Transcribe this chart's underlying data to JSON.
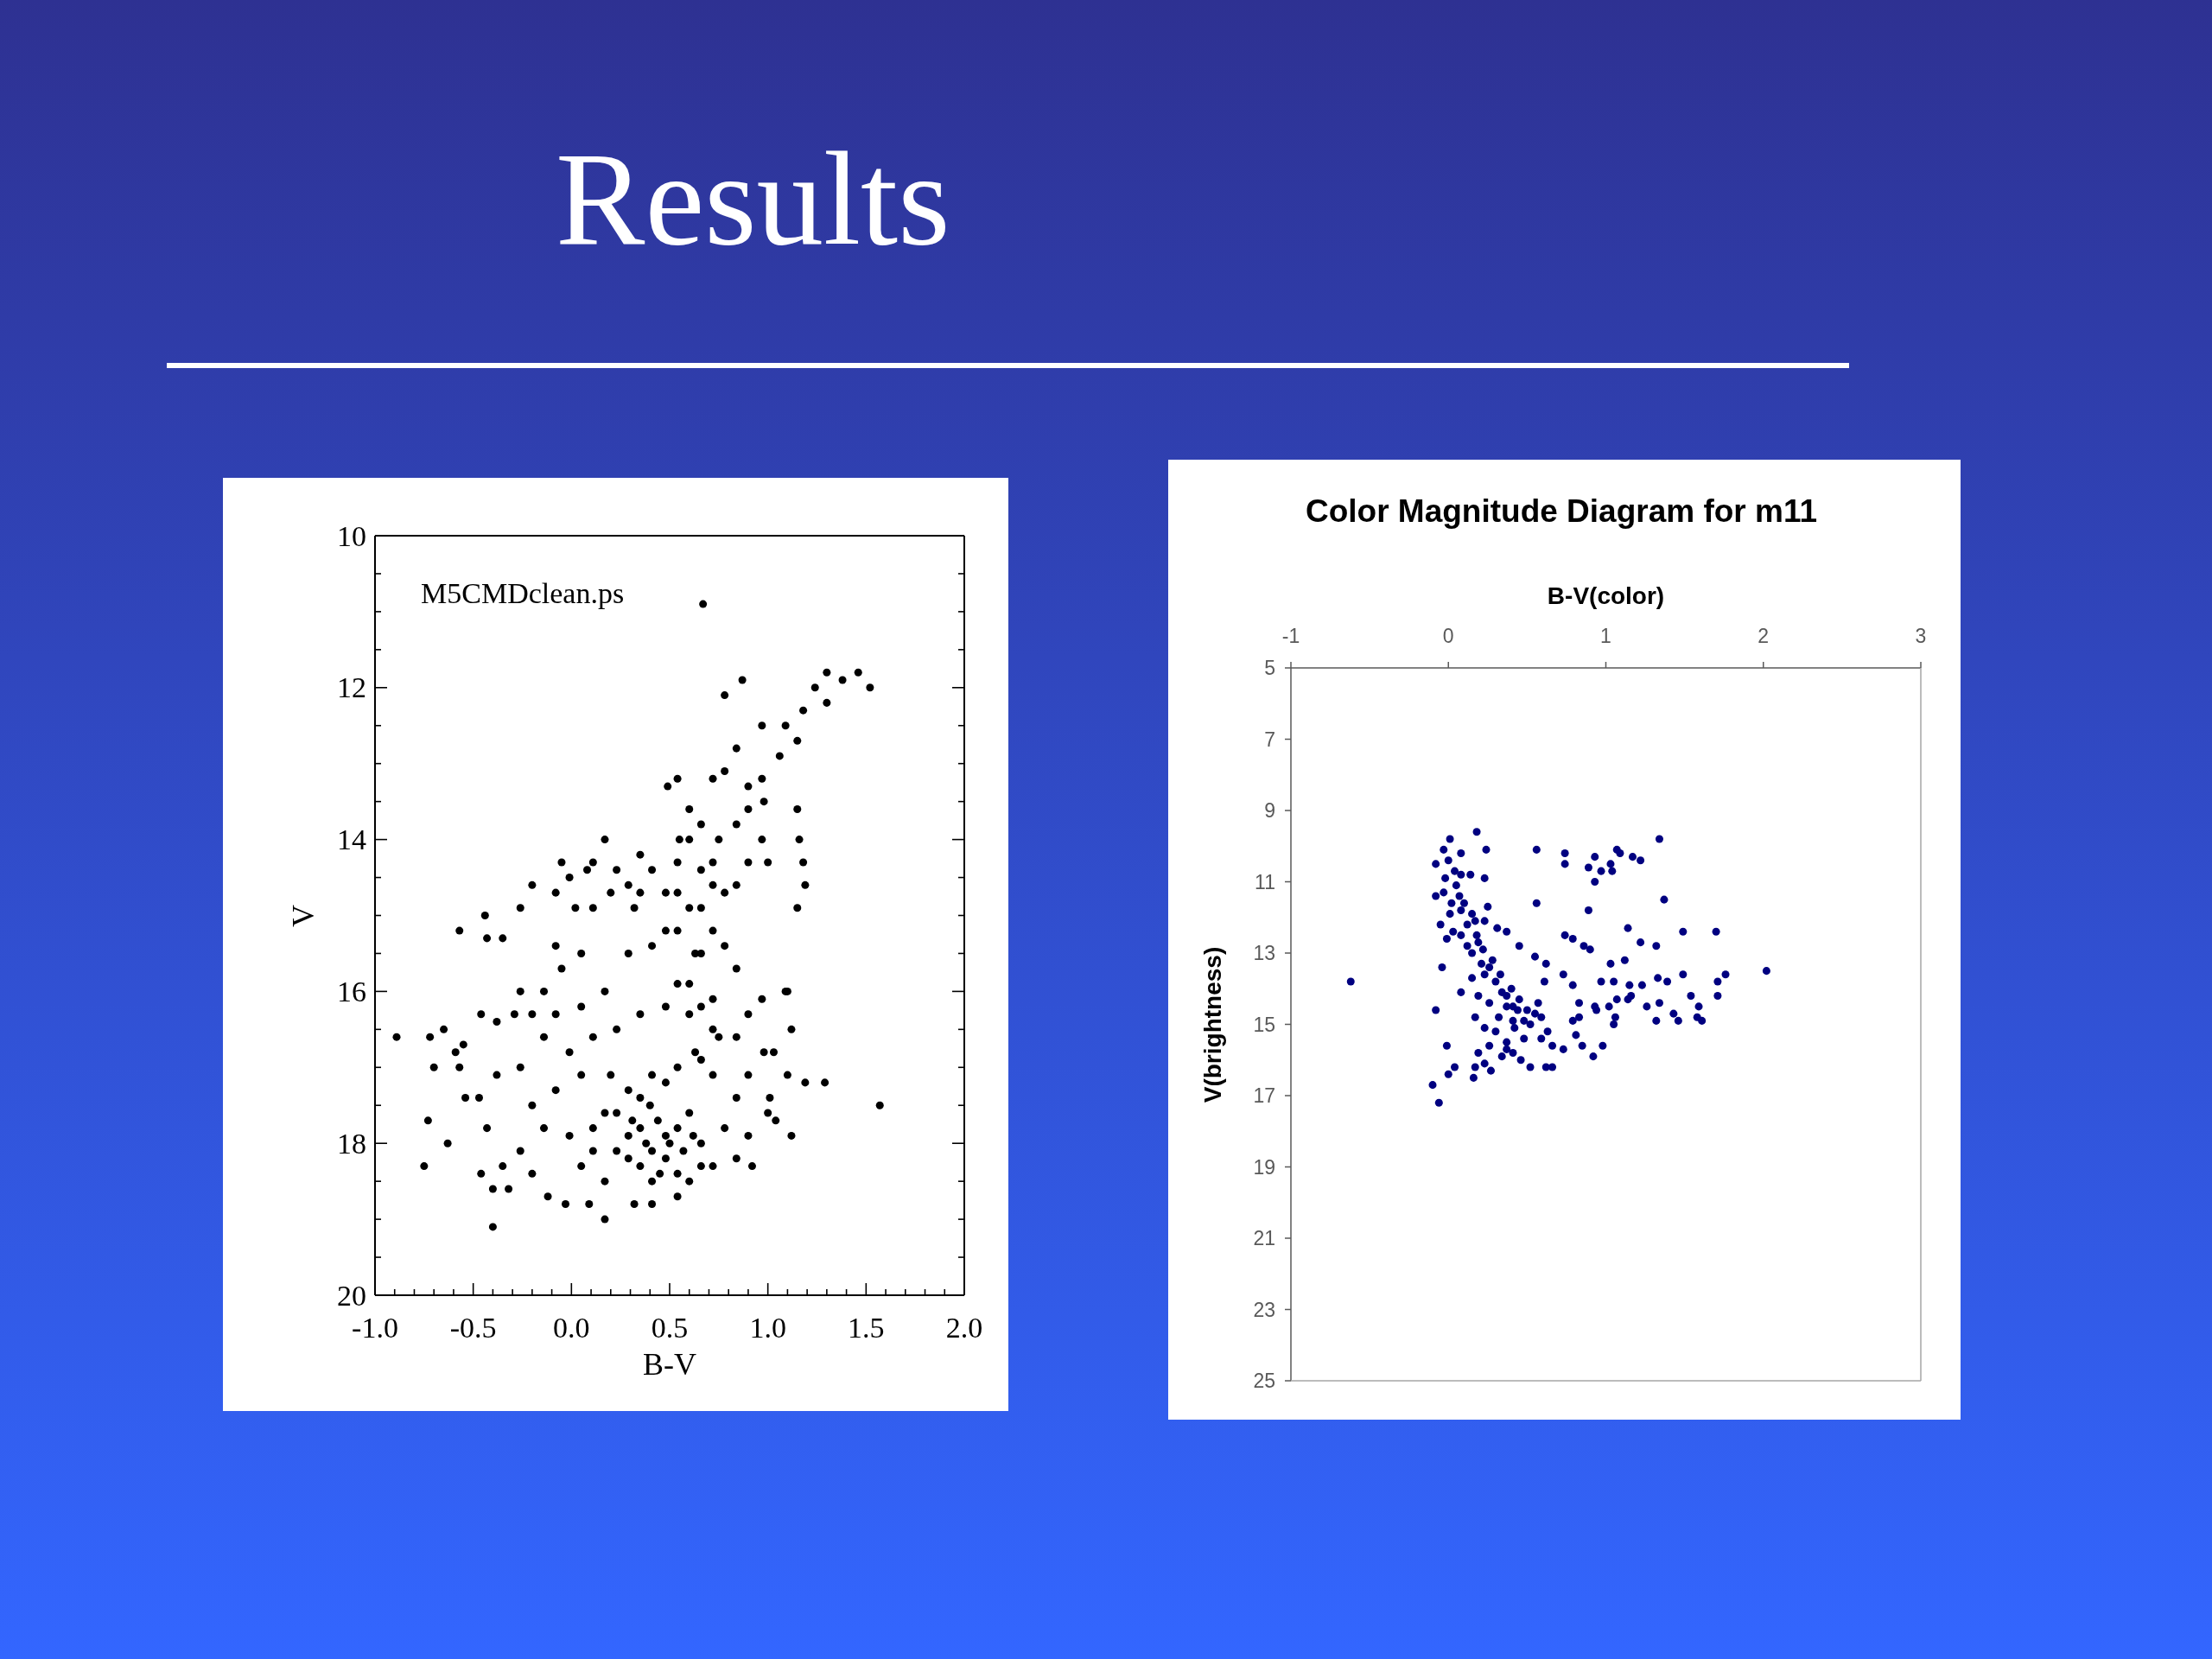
{
  "chart_data": [
    {
      "type": "other",
      "title": "Results"
    },
    {
      "type": "scatter",
      "xlabel": "B-V",
      "ylabel": "V",
      "annotations": [
        "M5CMDclean.ps"
      ],
      "marker": "circle",
      "color": "#000000",
      "xlim": [
        -1,
        2
      ],
      "ylim": [
        20,
        10
      ],
      "xticks": [
        {
          "value": -1,
          "label": "-1.0"
        },
        {
          "value": -0.9,
          "label": null
        },
        {
          "value": -0.8,
          "label": null
        },
        {
          "value": -0.7,
          "label": null
        },
        {
          "value": -0.6,
          "label": null
        },
        {
          "value": -0.5,
          "label": "-0.5"
        },
        {
          "value": -0.4,
          "label": null
        },
        {
          "value": -0.3,
          "label": null
        },
        {
          "value": -0.2,
          "label": null
        },
        {
          "value": -0.1,
          "label": null
        },
        {
          "value": 0,
          "label": "0.0"
        },
        {
          "value": 0.1,
          "label": null
        },
        {
          "value": 0.2,
          "label": null
        },
        {
          "value": 0.3,
          "label": null
        },
        {
          "value": 0.4,
          "label": null
        },
        {
          "value": 0.5,
          "label": "0.5"
        },
        {
          "value": 0.6,
          "label": null
        },
        {
          "value": 0.7,
          "label": null
        },
        {
          "value": 0.8,
          "label": null
        },
        {
          "value": 0.9,
          "label": null
        },
        {
          "value": 1,
          "label": "1.0"
        },
        {
          "value": 1.1,
          "label": null
        },
        {
          "value": 1.2,
          "label": null
        },
        {
          "value": 1.3,
          "label": null
        },
        {
          "value": 1.4,
          "label": null
        },
        {
          "value": 1.5,
          "label": "1.5"
        },
        {
          "value": 1.6,
          "label": null
        },
        {
          "value": 1.7,
          "label": null
        },
        {
          "value": 1.8,
          "label": null
        },
        {
          "value": 1.9,
          "label": null
        },
        {
          "value": 2,
          "label": "2.0"
        }
      ],
      "yticks": [
        10,
        {
          "value": 10.5,
          "label": null
        },
        {
          "value": 11,
          "label": null
        },
        {
          "value": 11.5,
          "label": null
        },
        12,
        {
          "value": 12.5,
          "label": null
        },
        {
          "value": 13,
          "label": null
        },
        {
          "value": 13.5,
          "label": null
        },
        14,
        {
          "value": 14.5,
          "label": null
        },
        {
          "value": 15,
          "label": null
        },
        {
          "value": 15.5,
          "label": null
        },
        16,
        {
          "value": 16.5,
          "label": null
        },
        {
          "value": 17,
          "label": null
        },
        {
          "value": 17.5,
          "label": null
        },
        18,
        {
          "value": 18.5,
          "label": null
        },
        {
          "value": 19,
          "label": null
        },
        {
          "value": 19.5,
          "label": null
        },
        20
      ],
      "x": [
        0.67,
        1.46,
        1.52,
        1.38,
        1.3,
        1.24,
        1.3,
        1.18,
        1.09,
        0.97,
        0.87,
        0.78,
        1.15,
        1.06,
        0.97,
        0.9,
        0.84,
        0.78,
        0.72,
        0.98,
        0.9,
        0.84,
        0.75,
        0.66,
        0.54,
        0.49,
        0.97,
        1.0,
        0.9,
        1.15,
        1.16,
        1.18,
        1.19,
        1.15,
        -0.2,
        -0.26,
        -0.08,
        -0.01,
        0.08,
        0.17,
        0.11,
        0.23,
        0.32,
        0.29,
        0.41,
        0.48,
        0.35,
        0.54,
        0.6,
        0.66,
        0.72,
        0.78,
        0.84,
        -0.05,
        0.02,
        0.11,
        0.2,
        0.35,
        -0.08,
        -0.05,
        0.05,
        -0.14,
        -0.2,
        -0.26,
        -0.29,
        -0.08,
        0.05,
        0.17,
        0.29,
        0.41,
        0.54,
        0.66,
        0.78,
        0.84,
        0.6,
        0.72,
        0.9,
        0.97,
        1.09,
        1.12,
        1.03,
        0.84,
        0.72,
        0.6,
        0.48,
        0.35,
        0.23,
        0.11,
        -0.01,
        -0.14,
        -0.26,
        -0.89,
        -0.72,
        -0.7,
        -0.65,
        -0.59,
        -0.57,
        -0.57,
        -0.55,
        -0.44,
        -0.43,
        -0.35,
        -0.46,
        -0.38,
        -0.54,
        -0.47,
        -0.43,
        -0.38,
        -0.73,
        -0.63,
        -0.75,
        -0.46,
        -0.4,
        -0.4,
        -0.32,
        -0.35,
        -0.2,
        -0.14,
        -0.26,
        -0.2,
        -0.12,
        -0.03,
        0.09,
        0.17,
        -0.08,
        0.05,
        -0.01,
        0.11,
        0.05,
        0.17,
        0.32,
        0.41,
        0.54,
        0.6,
        0.29,
        0.35,
        0.41,
        0.48,
        0.54,
        0.48,
        0.35,
        0.29,
        0.23,
        0.23,
        0.35,
        0.48,
        0.6,
        0.66,
        0.72,
        0.78,
        0.84,
        0.9,
        0.9,
        0.72,
        0.66,
        0.54,
        0.41,
        0.29,
        0.2,
        0.17,
        0.54,
        0.41,
        0.66,
        0.84,
        0.92,
        0.11,
        1.1,
        1.12,
        1.04,
        1.19,
        1.29,
        1.57,
        1.0,
        1.01,
        0.98,
        1.1,
        0.55,
        0.6,
        0.72,
        0.66,
        0.72,
        0.6,
        0.54,
        0.48,
        0.63,
        0.54,
        0.66,
        0.75,
        0.63,
        0.38,
        0.44,
        0.5,
        0.57,
        0.45,
        0.31,
        0.62,
        0.4
      ],
      "values": [
        10.9,
        11.8,
        12.0,
        11.9,
        11.8,
        12.0,
        12.2,
        12.3,
        12.5,
        12.5,
        11.9,
        12.1,
        12.7,
        12.9,
        13.2,
        13.3,
        12.8,
        13.1,
        13.2,
        13.5,
        13.6,
        13.8,
        14.0,
        13.8,
        13.2,
        13.3,
        14.0,
        14.3,
        14.3,
        13.6,
        14.0,
        14.3,
        14.6,
        14.9,
        14.6,
        14.9,
        14.7,
        14.5,
        14.4,
        14.0,
        14.3,
        14.4,
        14.9,
        14.6,
        14.4,
        14.7,
        14.2,
        14.3,
        14.0,
        14.4,
        14.6,
        14.7,
        14.6,
        14.3,
        14.9,
        14.9,
        14.7,
        14.7,
        15.4,
        15.7,
        15.5,
        16.0,
        16.3,
        16.0,
        16.3,
        16.3,
        16.2,
        16.0,
        15.5,
        15.4,
        15.2,
        15.5,
        15.4,
        15.7,
        15.9,
        16.1,
        16.3,
        16.1,
        16.0,
        16.5,
        16.8,
        16.6,
        16.5,
        16.3,
        16.2,
        16.3,
        16.5,
        16.6,
        16.8,
        16.6,
        17.0,
        16.6,
        16.6,
        17.0,
        16.5,
        16.8,
        17.0,
        15.2,
        16.7,
        15.0,
        15.3,
        15.3,
        16.3,
        16.4,
        17.4,
        17.4,
        17.8,
        17.1,
        17.7,
        18.0,
        18.3,
        18.4,
        18.6,
        19.1,
        18.6,
        18.3,
        17.5,
        17.8,
        18.1,
        18.4,
        18.7,
        18.8,
        18.8,
        19.0,
        17.3,
        17.1,
        17.9,
        17.8,
        18.3,
        18.5,
        18.8,
        18.8,
        18.7,
        18.5,
        17.9,
        17.8,
        18.1,
        17.9,
        17.8,
        18.2,
        18.3,
        18.2,
        18.1,
        17.6,
        17.4,
        17.2,
        17.6,
        18.0,
        18.3,
        17.8,
        17.4,
        17.9,
        17.1,
        17.1,
        16.9,
        17.0,
        17.1,
        17.3,
        17.1,
        17.6,
        18.4,
        18.5,
        18.3,
        18.2,
        18.3,
        18.1,
        17.1,
        17.9,
        17.7,
        17.2,
        17.2,
        17.5,
        17.6,
        17.4,
        16.8,
        16.0,
        14.0,
        13.6,
        14.3,
        14.9,
        15.2,
        14.9,
        14.7,
        15.2,
        15.5,
        15.9,
        16.2,
        16.6,
        16.8,
        18.0,
        17.7,
        18.0,
        18.1,
        18.4,
        17.7,
        17.9,
        17.5
      ]
    },
    {
      "type": "scatter",
      "title": "Color Magnitude Diagram for m11",
      "xlabel": "B-V(color)",
      "ylabel": "V(brightness)",
      "marker": "circle",
      "color": "#000080",
      "xlim": [
        -1,
        3
      ],
      "ylim": [
        25,
        5
      ],
      "xticks": [
        -1,
        0,
        1,
        2,
        3
      ],
      "yticks": [
        5,
        7,
        9,
        11,
        13,
        15,
        17,
        19,
        21,
        23,
        25
      ],
      "x": [
        0.18,
        0.01,
        1.34,
        -0.03,
        0.08,
        0.24,
        0.56,
        0.74,
        0.74,
        0.93,
        0.89,
        0.97,
        0.93,
        1.03,
        1.07,
        1.09,
        1.17,
        1.22,
        1.04,
        -0.08,
        0,
        0.04,
        -0.02,
        0.08,
        0.14,
        0.23,
        -0.08,
        -0.03,
        0.02,
        0.07,
        0.01,
        0.08,
        0.15,
        0.17,
        0.23,
        -0.05,
        0.03,
        0.08,
        -0.01,
        0.12,
        0.15,
        0.19,
        0.21,
        0.26,
        0.23,
        0.3,
        0.34,
        0.37,
        0.41,
        0.44,
        0.48,
        0.52,
        0.37,
        0.32,
        0.26,
        0.19,
        0.15,
        0.17,
        0.23,
        0.3,
        0.41,
        0.57,
        0.59,
        0.63,
        0.59,
        0.48,
        0.37,
        0.26,
        0.19,
        0.23,
        0.34,
        0.41,
        0.52,
        0.62,
        0.66,
        0.46,
        0.17,
        0.16,
        0.27,
        0.37,
        0.66,
        0.73,
        0.81,
        0.85,
        0.92,
        0.98,
        0.74,
        0.79,
        0.86,
        0.9,
        0.89,
        0.56,
        0.25,
        0.31,
        0.37,
        0.45,
        0.55,
        0.62,
        0.73,
        0.61,
        0.79,
        0.83,
        0.94,
        1.03,
        1.12,
        1.14,
        1.37,
        1.22,
        1.32,
        1.49,
        1.7,
        1.33,
        1.39,
        1.49,
        1.23,
        1.15,
        1.05,
        0.97,
        1.76,
        2.02,
        1.71,
        1.71,
        1.54,
        1.59,
        1.58,
        1.61,
        1.46,
        1.43,
        1.32,
        1.34,
        1.26,
        1.16,
        1.14,
        1.07,
        1.06,
        1.05,
        1.02,
        0.93,
        0.79,
        0.83,
        -0.62,
        -0.08,
        -0.04,
        0.08,
        -0.01,
        0.04,
        0,
        -0.1,
        -0.06,
        0.05,
        0.1,
        0.12,
        0.18,
        0.22,
        0.28,
        0.33,
        0.4,
        0.45,
        0.5,
        0.55,
        0.42
      ],
      "values": [
        9.6,
        9.8,
        9.8,
        10.1,
        10.2,
        10.1,
        10.1,
        10.2,
        10.5,
        10.3,
        10.6,
        10.7,
        11.0,
        10.5,
        10.1,
        10.2,
        10.3,
        10.4,
        10.7,
        10.5,
        10.4,
        10.7,
        10.9,
        10.8,
        10.8,
        10.9,
        11.4,
        11.3,
        11.6,
        11.4,
        11.9,
        11.8,
        11.9,
        12.1,
        12.1,
        12.2,
        12.4,
        12.5,
        12.6,
        12.8,
        13.0,
        12.7,
        13.3,
        13.4,
        13.6,
        13.8,
        14.1,
        14.2,
        14.5,
        14.6,
        14.9,
        15.0,
        14.5,
        14.8,
        14.4,
        14.2,
        13.7,
        14.8,
        15.1,
        15.2,
        14.9,
        14.4,
        14.8,
        15.2,
        15.4,
        15.4,
        15.5,
        15.6,
        15.8,
        16.1,
        15.9,
        15.8,
        16.2,
        16.2,
        16.2,
        16.0,
        16.2,
        16.5,
        16.3,
        15.7,
        15.6,
        15.7,
        15.3,
        15.6,
        15.9,
        15.6,
        12.5,
        12.6,
        12.8,
        12.9,
        11.8,
        11.6,
        11.7,
        12.3,
        12.4,
        12.8,
        13.1,
        13.3,
        13.6,
        13.8,
        13.9,
        14.4,
        14.6,
        13.3,
        13.2,
        12.3,
        11.5,
        12.7,
        12.8,
        12.4,
        12.4,
        13.7,
        13.8,
        13.6,
        13.9,
        13.9,
        13.8,
        13.8,
        13.6,
        13.5,
        13.8,
        14.2,
        14.2,
        14.5,
        14.8,
        14.9,
        14.9,
        14.7,
        14.9,
        14.4,
        14.5,
        14.2,
        14.3,
        14.3,
        14.8,
        15.0,
        14.5,
        14.5,
        14.9,
        14.8,
        13.8,
        14.6,
        13.4,
        14.1,
        15.6,
        16.2,
        16.4,
        16.7,
        17.2,
        11.1,
        11.6,
        12.2,
        12.5,
        12.9,
        13.2,
        13.6,
        14.0,
        14.3,
        14.6,
        14.7,
        15.1
      ]
    }
  ]
}
